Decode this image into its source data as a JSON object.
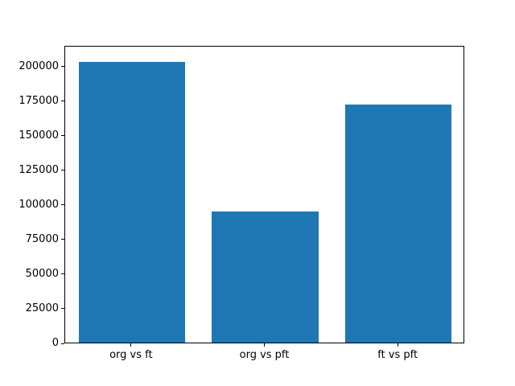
{
  "figure": {
    "background": "#ffffff"
  },
  "chart_data": {
    "type": "bar",
    "categories": [
      "org vs ft",
      "org vs pft",
      "ft vs pft"
    ],
    "values": [
      204000,
      95000,
      173000
    ],
    "title": "",
    "xlabel": "",
    "ylabel": "",
    "ylim": [
      0,
      215000
    ],
    "yticks": [
      0,
      25000,
      50000,
      75000,
      100000,
      125000,
      150000,
      175000,
      200000
    ],
    "bar_color": "#1f77b4",
    "bar_width_fraction": 0.8,
    "grid": false,
    "legend_position": "none",
    "spine_color": "#000000",
    "text_color": "#000000"
  }
}
